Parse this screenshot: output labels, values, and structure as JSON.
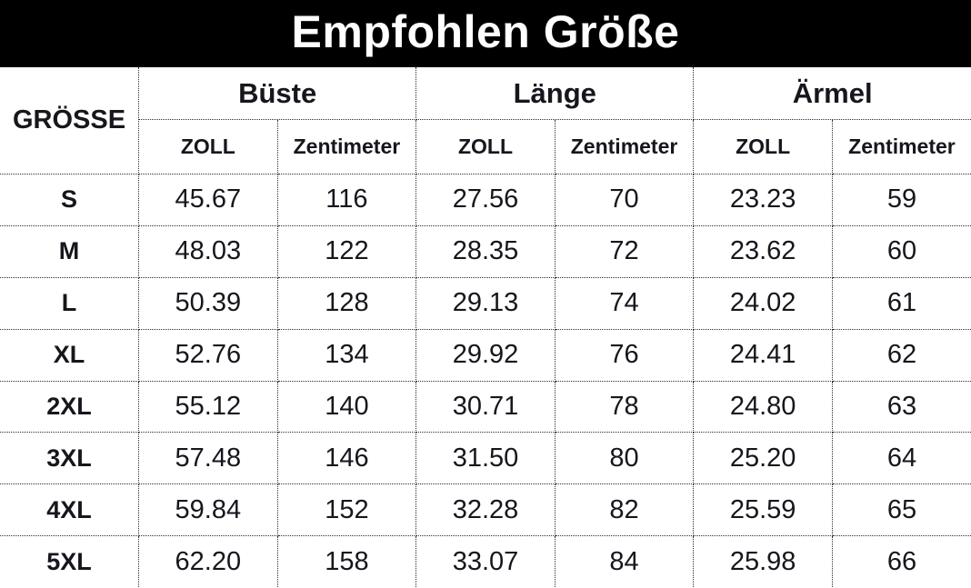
{
  "title": "Empfohlen Größe",
  "colors": {
    "title_bg": "#000000",
    "title_text": "#ffffff",
    "table_text": "#16161d",
    "border": "#2b2b2b"
  },
  "table": {
    "corner_header": "GRÖSSE",
    "groups": [
      {
        "label": "Büste"
      },
      {
        "label": "Länge"
      },
      {
        "label": "Ärmel"
      }
    ],
    "sub_headers": [
      "ZOLL",
      "Zentimeter"
    ],
    "rows": [
      {
        "size": "S",
        "values": [
          "45.67",
          "116",
          "27.56",
          "70",
          "23.23",
          "59"
        ]
      },
      {
        "size": "M",
        "values": [
          "48.03",
          "122",
          "28.35",
          "72",
          "23.62",
          "60"
        ]
      },
      {
        "size": "L",
        "values": [
          "50.39",
          "128",
          "29.13",
          "74",
          "24.02",
          "61"
        ]
      },
      {
        "size": "XL",
        "values": [
          "52.76",
          "134",
          "29.92",
          "76",
          "24.41",
          "62"
        ]
      },
      {
        "size": "2XL",
        "values": [
          "55.12",
          "140",
          "30.71",
          "78",
          "24.80",
          "63"
        ]
      },
      {
        "size": "3XL",
        "values": [
          "57.48",
          "146",
          "31.50",
          "80",
          "25.20",
          "64"
        ]
      },
      {
        "size": "4XL",
        "values": [
          "59.84",
          "152",
          "32.28",
          "82",
          "25.59",
          "65"
        ]
      },
      {
        "size": "5XL",
        "values": [
          "62.20",
          "158",
          "33.07",
          "84",
          "25.98",
          "66"
        ]
      }
    ]
  }
}
